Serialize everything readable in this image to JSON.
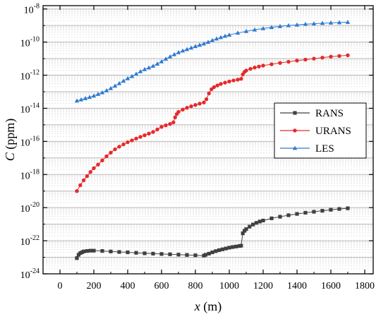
{
  "chart_data": {
    "type": "line",
    "title": "",
    "xlabel": {
      "italic": "x",
      "rest": " (m)"
    },
    "ylabel": {
      "italic": "C",
      "rest": " (ppm)"
    },
    "x_scale": "linear",
    "y_scale": "log",
    "xlim": [
      -100,
      1850
    ],
    "ylim_log10": [
      -24,
      -7.8
    ],
    "x_ticks": [
      0,
      200,
      400,
      600,
      800,
      1000,
      1200,
      1400,
      1600,
      1800
    ],
    "y_ticks": [
      {
        "base": "10",
        "exp": "-24",
        "value_log10": -24
      },
      {
        "base": "10",
        "exp": "-22",
        "value_log10": -22
      },
      {
        "base": "10",
        "exp": "-20",
        "value_log10": -20
      },
      {
        "base": "10",
        "exp": "-18",
        "value_log10": -18
      },
      {
        "base": "10",
        "exp": "-16",
        "value_log10": -16
      },
      {
        "base": "10",
        "exp": "-14",
        "value_log10": -14
      },
      {
        "base": "10",
        "exp": "-12",
        "value_log10": -12
      },
      {
        "base": "10",
        "exp": "-10",
        "value_log10": -10
      },
      {
        "base": "10",
        "exp": "-8",
        "value_log10": -8
      }
    ],
    "grid": true,
    "legend_position": "center-right",
    "series": [
      {
        "name": "RANS",
        "color": "#404040",
        "marker": "square",
        "points": [
          [
            100,
            -23.05
          ],
          [
            110,
            -22.85
          ],
          [
            120,
            -22.75
          ],
          [
            130,
            -22.7
          ],
          [
            140,
            -22.65
          ],
          [
            160,
            -22.62
          ],
          [
            180,
            -22.6
          ],
          [
            200,
            -22.6
          ],
          [
            250,
            -22.62
          ],
          [
            300,
            -22.65
          ],
          [
            350,
            -22.68
          ],
          [
            400,
            -22.7
          ],
          [
            450,
            -22.73
          ],
          [
            500,
            -22.76
          ],
          [
            550,
            -22.78
          ],
          [
            600,
            -22.8
          ],
          [
            650,
            -22.82
          ],
          [
            700,
            -22.84
          ],
          [
            750,
            -22.86
          ],
          [
            800,
            -22.88
          ],
          [
            850,
            -22.9
          ],
          [
            860,
            -22.85
          ],
          [
            880,
            -22.78
          ],
          [
            900,
            -22.7
          ],
          [
            920,
            -22.63
          ],
          [
            940,
            -22.57
          ],
          [
            960,
            -22.52
          ],
          [
            980,
            -22.47
          ],
          [
            1000,
            -22.42
          ],
          [
            1020,
            -22.38
          ],
          [
            1040,
            -22.35
          ],
          [
            1060,
            -22.32
          ],
          [
            1070,
            -22.3
          ],
          [
            1080,
            -21.55
          ],
          [
            1090,
            -21.4
          ],
          [
            1100,
            -21.3
          ],
          [
            1120,
            -21.15
          ],
          [
            1140,
            -21.02
          ],
          [
            1160,
            -20.92
          ],
          [
            1180,
            -20.84
          ],
          [
            1200,
            -20.78
          ],
          [
            1250,
            -20.65
          ],
          [
            1300,
            -20.55
          ],
          [
            1350,
            -20.46
          ],
          [
            1400,
            -20.38
          ],
          [
            1450,
            -20.31
          ],
          [
            1500,
            -20.25
          ],
          [
            1550,
            -20.19
          ],
          [
            1600,
            -20.13
          ],
          [
            1650,
            -20.08
          ],
          [
            1700,
            -20.04
          ]
        ]
      },
      {
        "name": "URANS",
        "color": "#e8282a",
        "marker": "circle",
        "points": [
          [
            100,
            -19.0
          ],
          [
            120,
            -18.65
          ],
          [
            140,
            -18.35
          ],
          [
            160,
            -18.1
          ],
          [
            180,
            -17.85
          ],
          [
            200,
            -17.62
          ],
          [
            225,
            -17.4
          ],
          [
            250,
            -17.15
          ],
          [
            275,
            -16.9
          ],
          [
            300,
            -16.68
          ],
          [
            325,
            -16.48
          ],
          [
            350,
            -16.32
          ],
          [
            375,
            -16.18
          ],
          [
            400,
            -16.05
          ],
          [
            425,
            -15.94
          ],
          [
            450,
            -15.83
          ],
          [
            475,
            -15.73
          ],
          [
            500,
            -15.63
          ],
          [
            525,
            -15.53
          ],
          [
            550,
            -15.43
          ],
          [
            575,
            -15.28
          ],
          [
            600,
            -15.12
          ],
          [
            625,
            -15.03
          ],
          [
            650,
            -14.95
          ],
          [
            670,
            -14.85
          ],
          [
            680,
            -14.55
          ],
          [
            690,
            -14.35
          ],
          [
            700,
            -14.22
          ],
          [
            725,
            -14.08
          ],
          [
            750,
            -13.97
          ],
          [
            775,
            -13.88
          ],
          [
            800,
            -13.8
          ],
          [
            825,
            -13.72
          ],
          [
            850,
            -13.65
          ],
          [
            865,
            -13.45
          ],
          [
            880,
            -13.1
          ],
          [
            895,
            -12.85
          ],
          [
            910,
            -12.72
          ],
          [
            930,
            -12.62
          ],
          [
            950,
            -12.53
          ],
          [
            975,
            -12.45
          ],
          [
            1000,
            -12.38
          ],
          [
            1025,
            -12.32
          ],
          [
            1050,
            -12.27
          ],
          [
            1070,
            -12.22
          ],
          [
            1080,
            -11.95
          ],
          [
            1090,
            -11.8
          ],
          [
            1100,
            -11.72
          ],
          [
            1125,
            -11.62
          ],
          [
            1150,
            -11.54
          ],
          [
            1175,
            -11.48
          ],
          [
            1200,
            -11.42
          ],
          [
            1250,
            -11.34
          ],
          [
            1300,
            -11.26
          ],
          [
            1350,
            -11.19
          ],
          [
            1400,
            -11.12
          ],
          [
            1450,
            -11.06
          ],
          [
            1500,
            -11.0
          ],
          [
            1550,
            -10.94
          ],
          [
            1600,
            -10.88
          ],
          [
            1650,
            -10.84
          ],
          [
            1700,
            -10.8
          ]
        ]
      },
      {
        "name": "LES",
        "color": "#2e7ad1",
        "marker": "triangle",
        "points": [
          [
            100,
            -13.55
          ],
          [
            125,
            -13.48
          ],
          [
            150,
            -13.4
          ],
          [
            175,
            -13.33
          ],
          [
            200,
            -13.25
          ],
          [
            225,
            -13.15
          ],
          [
            250,
            -13.05
          ],
          [
            275,
            -12.93
          ],
          [
            300,
            -12.8
          ],
          [
            325,
            -12.65
          ],
          [
            350,
            -12.5
          ],
          [
            375,
            -12.35
          ],
          [
            400,
            -12.2
          ],
          [
            425,
            -12.07
          ],
          [
            450,
            -11.93
          ],
          [
            475,
            -11.78
          ],
          [
            500,
            -11.65
          ],
          [
            525,
            -11.55
          ],
          [
            550,
            -11.45
          ],
          [
            575,
            -11.32
          ],
          [
            600,
            -11.18
          ],
          [
            625,
            -11.02
          ],
          [
            650,
            -10.88
          ],
          [
            675,
            -10.75
          ],
          [
            700,
            -10.63
          ],
          [
            725,
            -10.53
          ],
          [
            750,
            -10.44
          ],
          [
            775,
            -10.35
          ],
          [
            800,
            -10.26
          ],
          [
            825,
            -10.18
          ],
          [
            850,
            -10.1
          ],
          [
            875,
            -10.0
          ],
          [
            900,
            -9.9
          ],
          [
            925,
            -9.8
          ],
          [
            950,
            -9.72
          ],
          [
            975,
            -9.64
          ],
          [
            1000,
            -9.57
          ],
          [
            1050,
            -9.45
          ],
          [
            1100,
            -9.35
          ],
          [
            1150,
            -9.26
          ],
          [
            1200,
            -9.18
          ],
          [
            1250,
            -9.11
          ],
          [
            1300,
            -9.05
          ],
          [
            1350,
            -9.0
          ],
          [
            1400,
            -8.96
          ],
          [
            1450,
            -8.92
          ],
          [
            1500,
            -8.89
          ],
          [
            1550,
            -8.86
          ],
          [
            1600,
            -8.84
          ],
          [
            1650,
            -8.82
          ],
          [
            1700,
            -8.8
          ]
        ]
      }
    ]
  }
}
